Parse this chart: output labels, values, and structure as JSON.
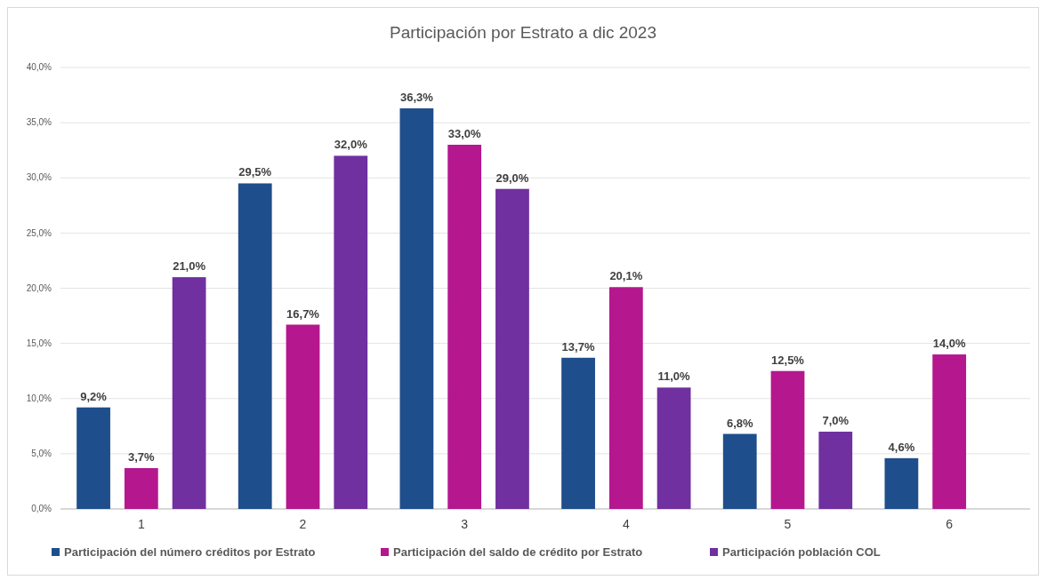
{
  "chart_data": {
    "type": "bar",
    "title": "Participación por Estrato a dic 2023",
    "categories": [
      "1",
      "2",
      "3",
      "4",
      "5",
      "6"
    ],
    "series": [
      {
        "name": "Participación del número créditos por Estrato",
        "color": "#1f4e8c",
        "values": [
          9.2,
          29.5,
          36.3,
          13.7,
          6.8,
          4.6
        ],
        "value_labels": [
          "9,2%",
          "29,5%",
          "36,3%",
          "13,7%",
          "6,8%",
          "4,6%"
        ]
      },
      {
        "name": "Participación del saldo de crédito por Estrato",
        "color": "#b5178e",
        "values": [
          3.7,
          16.7,
          33.0,
          20.1,
          12.5,
          14.0
        ],
        "value_labels": [
          "3,7%",
          "16,7%",
          "33,0%",
          "20,1%",
          "12,5%",
          "14,0%"
        ]
      },
      {
        "name": "Participación población COL",
        "color": "#7030a0",
        "values": [
          21.0,
          32.0,
          29.0,
          11.0,
          7.0,
          null
        ],
        "value_labels": [
          "21,0%",
          "32,0%",
          "29,0%",
          "11,0%",
          "7,0%",
          null
        ]
      }
    ],
    "ylim": [
      0,
      40
    ],
    "yticks": [
      {
        "value": 0,
        "label": "0,0%"
      },
      {
        "value": 5,
        "label": "5,0%"
      },
      {
        "value": 10,
        "label": "10,0%"
      },
      {
        "value": 15,
        "label": "15,0%"
      },
      {
        "value": 20,
        "label": "20,0%"
      },
      {
        "value": 25,
        "label": "25,0%"
      },
      {
        "value": 30,
        "label": "30,0%"
      },
      {
        "value": 35,
        "label": "35,0%"
      },
      {
        "value": 40,
        "label": "40,0%"
      }
    ],
    "grid": "y",
    "legend": "bottom"
  }
}
